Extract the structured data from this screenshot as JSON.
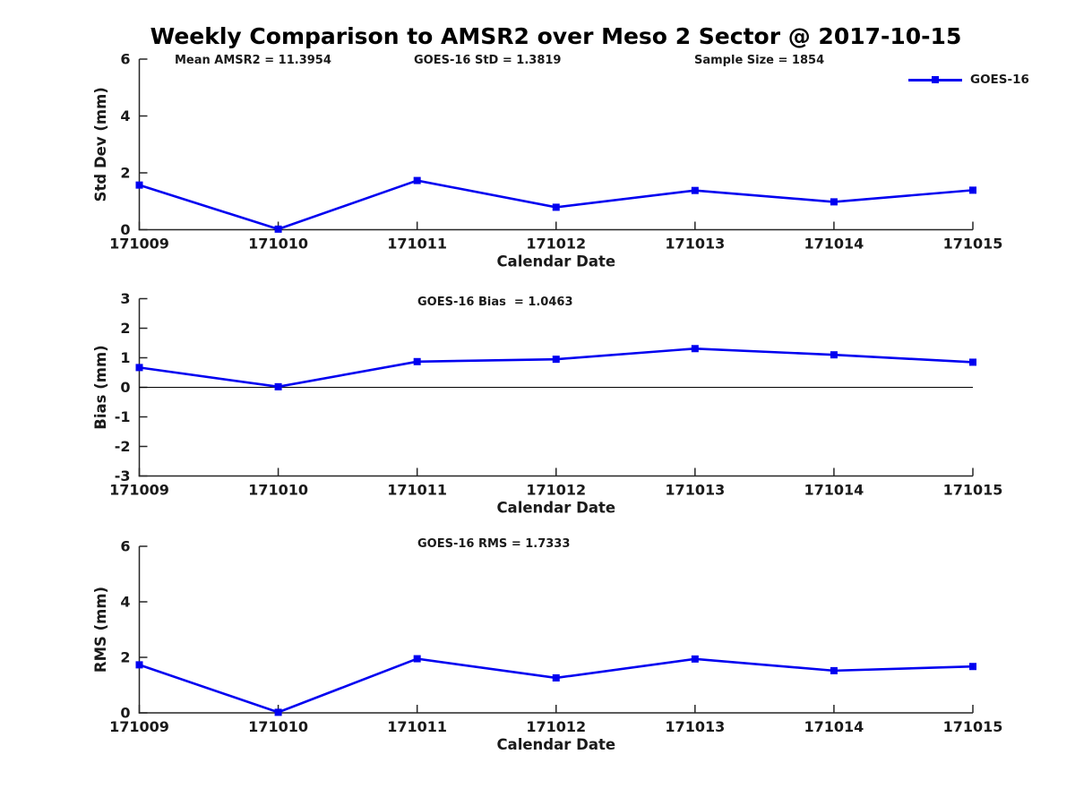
{
  "title": "Weekly Comparison to AMSR2 over Meso 2 Sector @ 2017-10-15",
  "legend": {
    "label": "GOES-16"
  },
  "colors": {
    "series": "#0000f0",
    "axis": "#262626",
    "text": "#1a1a1a",
    "zero_line": "#000000",
    "background": "#ffffff"
  },
  "chart_data": [
    {
      "id": "std-dev",
      "type": "line",
      "ylabel": "Std Dev (mm)",
      "xlabel": "Calendar Date",
      "categories": [
        "171009",
        "171010",
        "171011",
        "171012",
        "171013",
        "171014",
        "171015"
      ],
      "series": [
        {
          "name": "GOES-16",
          "values": [
            1.57,
            0.02,
            1.73,
            0.79,
            1.38,
            0.98,
            1.39
          ]
        }
      ],
      "ylim": [
        0,
        6
      ],
      "yticks": [
        0,
        2,
        4,
        6
      ],
      "grid": false,
      "zero_line": false,
      "legend_position": "top-right-outside",
      "annotations": [
        "Mean AMSR2 = 11.3954",
        "GOES-16 StD = 1.3819",
        "Sample Size = 1854"
      ]
    },
    {
      "id": "bias",
      "type": "line",
      "ylabel": "Bias (mm)",
      "xlabel": "Calendar Date",
      "categories": [
        "171009",
        "171010",
        "171011",
        "171012",
        "171013",
        "171014",
        "171015"
      ],
      "series": [
        {
          "name": "GOES-16",
          "values": [
            0.67,
            0.02,
            0.87,
            0.95,
            1.31,
            1.1,
            0.85
          ]
        }
      ],
      "ylim": [
        -3,
        3
      ],
      "yticks": [
        -3,
        -2,
        -1,
        0,
        1,
        2,
        3
      ],
      "grid": false,
      "zero_line": true,
      "annotations": [
        "GOES-16 Bias  = 1.0463"
      ]
    },
    {
      "id": "rms",
      "type": "line",
      "ylabel": "RMS (mm)",
      "xlabel": "Calendar Date",
      "categories": [
        "171009",
        "171010",
        "171011",
        "171012",
        "171013",
        "171014",
        "171015"
      ],
      "series": [
        {
          "name": "GOES-16",
          "values": [
            1.73,
            0.02,
            1.95,
            1.26,
            1.94,
            1.52,
            1.67
          ]
        }
      ],
      "ylim": [
        0,
        6
      ],
      "yticks": [
        0,
        2,
        4,
        6
      ],
      "grid": false,
      "zero_line": false,
      "annotations": [
        "GOES-16 RMS = 1.7333"
      ]
    }
  ]
}
